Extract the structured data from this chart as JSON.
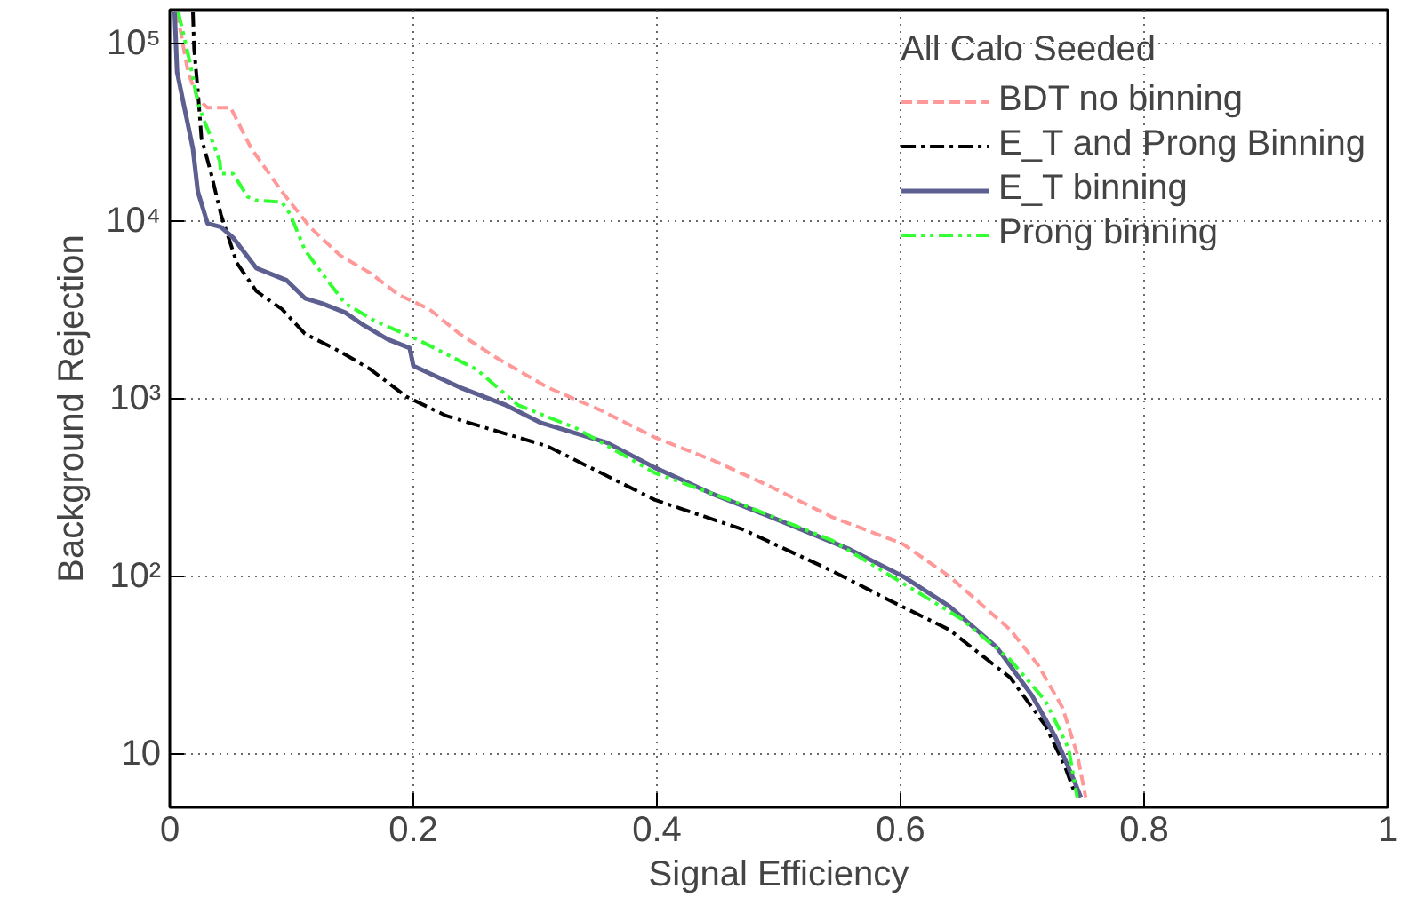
{
  "chart_data": {
    "type": "line",
    "xlabel": "Signal Efficiency",
    "ylabel": "Background Rejection",
    "legend_title": "All Calo Seeded",
    "log": "y",
    "grid": true,
    "legend": "top right",
    "xlim": [
      0,
      1
    ],
    "xticks": [
      0,
      0.2,
      0.4,
      0.6,
      0.8,
      1
    ],
    "ylim": [
      5,
      155000
    ],
    "yticks": [
      10,
      {
        "value": 100,
        "label": "10²"
      },
      {
        "value": 1000,
        "label": "10³"
      },
      {
        "value": 10000,
        "label": "10⁴"
      },
      {
        "value": 100000,
        "label": "10⁵"
      }
    ],
    "series": [
      {
        "name": "BDT no binning",
        "color": "#ff9999",
        "line_style": "dashed",
        "x": [
          0.006,
          0.015,
          0.023,
          0.031,
          0.05,
          0.067,
          0.092,
          0.115,
          0.14,
          0.165,
          0.188,
          0.213,
          0.238,
          0.267,
          0.31,
          0.354,
          0.398,
          0.446,
          0.494,
          0.544,
          0.602,
          0.64,
          0.69,
          0.713,
          0.733,
          0.745,
          0.752
        ],
        "values": [
          150000,
          69000,
          48900,
          43500,
          43500,
          25600,
          14700,
          9270,
          6400,
          5080,
          3850,
          3200,
          2320,
          1720,
          1160,
          860,
          607,
          450,
          318,
          215,
          152,
          100,
          50,
          31.6,
          18.2,
          10,
          5.7
        ]
      },
      {
        "name": "E_T and Prong Binning",
        "color": "#000000",
        "line_style": "dashdot",
        "x": [
          0.019,
          0.02,
          0.023,
          0.026,
          0.034,
          0.042,
          0.055,
          0.071,
          0.092,
          0.111,
          0.14,
          0.165,
          0.194,
          0.227,
          0.261,
          0.31,
          0.398,
          0.471,
          0.544,
          0.592,
          0.64,
          0.69,
          0.719,
          0.735,
          0.742
        ],
        "values": [
          150000,
          93300,
          54800,
          29400,
          18500,
          10900,
          5830,
          4040,
          3200,
          2320,
          1840,
          1460,
          1030,
          801,
          681,
          541,
          270,
          183,
          107,
          72.6,
          50,
          26.9,
          14.4,
          8.5,
          6.3
        ]
      },
      {
        "name": "E_T binning",
        "color": "#5c5f8f",
        "line_style": "solid",
        "x": [
          0.004,
          0.006,
          0.012,
          0.019,
          0.023,
          0.031,
          0.042,
          0.052,
          0.071,
          0.096,
          0.111,
          0.125,
          0.144,
          0.159,
          0.179,
          0.197,
          0.2,
          0.238,
          0.276,
          0.305,
          0.359,
          0.398,
          0.446,
          0.494,
          0.558,
          0.602,
          0.64,
          0.679,
          0.708,
          0.727,
          0.742,
          0.748
        ],
        "values": [
          150000,
          69000,
          43500,
          25600,
          14700,
          9700,
          9270,
          8070,
          5440,
          4640,
          3680,
          3440,
          3060,
          2600,
          2160,
          1930,
          1530,
          1160,
          920,
          731,
          566,
          410,
          290,
          215,
          142,
          100,
          67.8,
          39.8,
          21.3,
          12.5,
          7.2,
          5.7
        ]
      },
      {
        "name": "Prong binning",
        "color": "#33ff33",
        "line_style": "dashdotdot",
        "x": [
          0.007,
          0.016,
          0.023,
          0.028,
          0.034,
          0.041,
          0.042,
          0.052,
          0.064,
          0.071,
          0.092,
          0.099,
          0.111,
          0.125,
          0.144,
          0.169,
          0.203,
          0.252,
          0.286,
          0.334,
          0.398,
          0.471,
          0.544,
          0.602,
          0.65,
          0.69,
          0.719,
          0.738,
          0.745
        ],
        "values": [
          150000,
          81300,
          46700,
          37100,
          29400,
          21800,
          18500,
          18500,
          13700,
          13100,
          12800,
          10900,
          6870,
          5080,
          3440,
          2730,
          2160,
          1460,
          920,
          681,
          383,
          252,
          159,
          91.4,
          57.5,
          33.9,
          19.9,
          10.7,
          5.7
        ]
      }
    ]
  }
}
